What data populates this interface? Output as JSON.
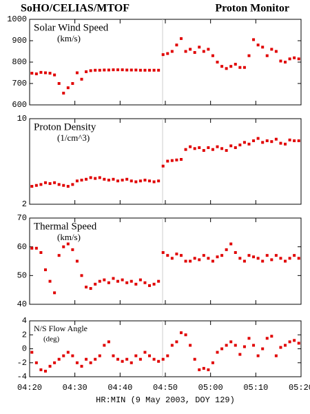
{
  "title": "SoHO/CELIAS/MTOF",
  "subtitle": "Proton Monitor",
  "chart_data": [
    {
      "type": "scatter",
      "title": "Solar Wind Speed",
      "units": "(km/s)",
      "color": "#e00000",
      "xlim": [
        0,
        60
      ],
      "ylim": [
        600,
        1000
      ],
      "yticks": [
        600,
        700,
        800,
        900,
        1000
      ],
      "x": [
        0.5,
        1.5,
        2.5,
        3.5,
        4.5,
        5.5,
        6.5,
        7.5,
        8.5,
        9.5,
        10.5,
        11.5,
        12.5,
        13.5,
        14.5,
        15.5,
        16.5,
        17.5,
        18.5,
        19.5,
        20.5,
        21.5,
        22.5,
        23.5,
        24.5,
        25.5,
        26.5,
        27.5,
        28.5,
        29.5,
        30.5,
        31.5,
        32.5,
        33.5,
        34.5,
        35.5,
        36.5,
        37.5,
        38.5,
        39.5,
        40.5,
        41.5,
        42.5,
        43.5,
        44.5,
        45.5,
        46.5,
        47.5,
        48.5,
        49.5,
        50.5,
        51.5,
        52.5,
        53.5,
        54.5,
        55.5,
        56.5,
        57.5,
        58.5,
        59.5
      ],
      "values": [
        748,
        745,
        752,
        750,
        748,
        740,
        700,
        655,
        680,
        700,
        750,
        720,
        755,
        760,
        762,
        762,
        763,
        763,
        764,
        764,
        764,
        763,
        763,
        763,
        762,
        762,
        762,
        762,
        762,
        835,
        840,
        850,
        880,
        910,
        850,
        860,
        845,
        870,
        850,
        860,
        830,
        800,
        780,
        770,
        780,
        790,
        775,
        775,
        830,
        905,
        880,
        870,
        830,
        860,
        850,
        805,
        800,
        815,
        820,
        815
      ]
    },
    {
      "type": "scatter",
      "title": "Proton Density",
      "units": "(1/cm^3)",
      "color": "#e00000",
      "log_scale": true,
      "xlim": [
        0,
        60
      ],
      "ylim": [
        2,
        10
      ],
      "yticks": [
        2,
        10
      ],
      "x": [
        0.5,
        1.5,
        2.5,
        3.5,
        4.5,
        5.5,
        6.5,
        7.5,
        8.5,
        9.5,
        10.5,
        11.5,
        12.5,
        13.5,
        14.5,
        15.5,
        16.5,
        17.5,
        18.5,
        19.5,
        20.5,
        21.5,
        22.5,
        23.5,
        24.5,
        25.5,
        26.5,
        27.5,
        28.5,
        29.5,
        30.5,
        31.5,
        32.5,
        33.5,
        34.5,
        35.5,
        36.5,
        37.5,
        38.5,
        39.5,
        40.5,
        41.5,
        42.5,
        43.5,
        44.5,
        45.5,
        46.5,
        47.5,
        48.5,
        49.5,
        50.5,
        51.5,
        52.5,
        53.5,
        54.5,
        55.5,
        56.5,
        57.5,
        58.5,
        59.5
      ],
      "values": [
        2.8,
        2.85,
        2.9,
        3.0,
        2.95,
        3.0,
        2.9,
        2.85,
        2.8,
        2.9,
        3.1,
        3.15,
        3.2,
        3.3,
        3.25,
        3.3,
        3.2,
        3.15,
        3.2,
        3.1,
        3.15,
        3.2,
        3.1,
        3.05,
        3.1,
        3.15,
        3.1,
        3.05,
        3.1,
        4.1,
        4.5,
        4.55,
        4.6,
        4.65,
        5.6,
        5.9,
        5.7,
        5.8,
        5.5,
        5.8,
        5.6,
        5.9,
        5.7,
        5.5,
        6.0,
        5.8,
        6.1,
        6.4,
        6.2,
        6.6,
        6.9,
        6.4,
        6.6,
        6.5,
        6.8,
        6.3,
        6.2,
        6.7,
        6.6,
        6.6
      ]
    },
    {
      "type": "scatter",
      "title": "Thermal Speed",
      "units": "(km/s)",
      "color": "#e00000",
      "xlim": [
        0,
        60
      ],
      "ylim": [
        40,
        70
      ],
      "yticks": [
        40,
        50,
        60,
        70
      ],
      "x": [
        0.5,
        1.5,
        2.5,
        3.5,
        4.5,
        5.5,
        6.5,
        7.5,
        8.5,
        9.5,
        10.5,
        11.5,
        12.5,
        13.5,
        14.5,
        15.5,
        16.5,
        17.5,
        18.5,
        19.5,
        20.5,
        21.5,
        22.5,
        23.5,
        24.5,
        25.5,
        26.5,
        27.5,
        28.5,
        29.5,
        30.5,
        31.5,
        32.5,
        33.5,
        34.5,
        35.5,
        36.5,
        37.5,
        38.5,
        39.5,
        40.5,
        41.5,
        42.5,
        43.5,
        44.5,
        45.5,
        46.5,
        47.5,
        48.5,
        49.5,
        50.5,
        51.5,
        52.5,
        53.5,
        54.5,
        55.5,
        56.5,
        57.5,
        58.5,
        59.5
      ],
      "values": [
        59.5,
        59.5,
        58,
        52,
        48,
        44,
        57,
        60,
        61,
        59,
        55,
        50,
        46,
        45.5,
        47,
        48,
        48.5,
        47.5,
        49,
        48,
        48.5,
        47.5,
        48,
        47,
        48.5,
        47.5,
        46.5,
        47,
        48,
        58,
        57,
        56,
        57.5,
        57,
        55,
        55,
        56,
        55.5,
        57,
        56,
        55,
        56.5,
        57,
        59,
        61,
        58,
        56,
        55,
        57,
        56.5,
        56,
        55,
        57,
        55.5,
        57,
        56,
        55,
        56,
        57,
        56
      ]
    },
    {
      "type": "scatter",
      "title": "N/S Flow Angle",
      "units": "(deg)",
      "color": "#e00000",
      "xlim": [
        0,
        60
      ],
      "ylim": [
        -4,
        4
      ],
      "yticks": [
        -4,
        -2,
        0,
        2,
        4
      ],
      "xticks": [
        {
          "value": 0,
          "label": "04:20"
        },
        {
          "value": 10,
          "label": "04:30"
        },
        {
          "value": 20,
          "label": "04:40"
        },
        {
          "value": 30,
          "label": "04:50"
        },
        {
          "value": 40,
          "label": "05:00"
        },
        {
          "value": 50,
          "label": "05:10"
        },
        {
          "value": 60,
          "label": "05:20"
        }
      ],
      "xlabel": "HR:MIN (9 May 2003, DOY 129)",
      "x": [
        0.5,
        1.5,
        2.5,
        3.5,
        4.5,
        5.5,
        6.5,
        7.5,
        8.5,
        9.5,
        10.5,
        11.5,
        12.5,
        13.5,
        14.5,
        15.5,
        16.5,
        17.5,
        18.5,
        19.5,
        20.5,
        21.5,
        22.5,
        23.5,
        24.5,
        25.5,
        26.5,
        27.5,
        28.5,
        29.5,
        30.5,
        31.5,
        32.5,
        33.5,
        34.5,
        35.5,
        36.5,
        37.5,
        38.5,
        39.5,
        40.5,
        41.5,
        42.5,
        43.5,
        44.5,
        45.5,
        46.5,
        47.5,
        48.5,
        49.5,
        50.5,
        51.5,
        52.5,
        53.5,
        54.5,
        55.5,
        56.5,
        57.5,
        58.5,
        59.5
      ],
      "values": [
        -0.5,
        -2,
        -3,
        -3.2,
        -2.5,
        -2,
        -1.5,
        -1,
        -0.5,
        -1,
        -2,
        -2.5,
        -1.5,
        -2,
        -1.5,
        -1,
        0.5,
        1,
        -1,
        -1.5,
        -1.8,
        -1.5,
        -2,
        -1,
        -1.5,
        -0.5,
        -1,
        -1.5,
        -1.8,
        -1.5,
        -1,
        0.5,
        1,
        2.3,
        2,
        0.5,
        -1.5,
        -3,
        -2.8,
        -3,
        -2,
        -0.5,
        0,
        0.5,
        1,
        0.5,
        -0.8,
        0.3,
        1.5,
        0.5,
        -1,
        0,
        1.5,
        1.8,
        -1,
        0.2,
        0.5,
        1,
        1.2,
        0.8
      ]
    }
  ]
}
